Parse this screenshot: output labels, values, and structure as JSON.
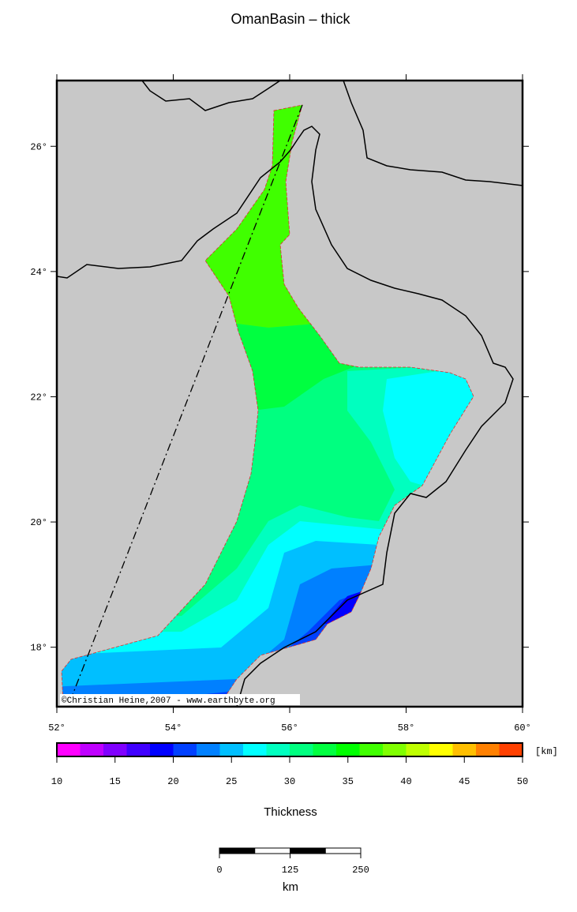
{
  "title": "OmanBasin – thick",
  "map": {
    "xlim": [
      52,
      60
    ],
    "ylim": [
      17.05,
      27.05
    ],
    "xticks": [
      {
        "value": 52,
        "label": "52°"
      },
      {
        "value": 54,
        "label": "54°"
      },
      {
        "value": 56,
        "label": "56°"
      },
      {
        "value": 58,
        "label": "58°"
      },
      {
        "value": 60,
        "label": "60°"
      }
    ],
    "yticks": [
      {
        "value": 18,
        "label": "18°"
      },
      {
        "value": 20,
        "label": "20°"
      },
      {
        "value": 22,
        "label": "22°"
      },
      {
        "value": 24,
        "label": "24°"
      },
      {
        "value": 26,
        "label": "26°"
      }
    ],
    "credit": "©Christian Heine,2007 - www.earthbyte.org"
  },
  "colorbar": {
    "ticks": [
      10,
      15,
      20,
      25,
      30,
      35,
      40,
      45,
      50
    ],
    "colors": [
      "#ff00ff",
      "#bf00ff",
      "#8000ff",
      "#4000ff",
      "#0000ff",
      "#0040ff",
      "#0080ff",
      "#00bfff",
      "#00ffff",
      "#00ffbf",
      "#00ff80",
      "#00ff40",
      "#00ff00",
      "#40ff00",
      "#80ff00",
      "#bfff00",
      "#ffff00",
      "#ffbf00",
      "#ff8000",
      "#ff4000"
    ],
    "unit": "[km]",
    "label": "Thickness"
  },
  "scalebar": {
    "ticks": [
      0,
      125,
      250
    ],
    "unit": "km"
  }
}
